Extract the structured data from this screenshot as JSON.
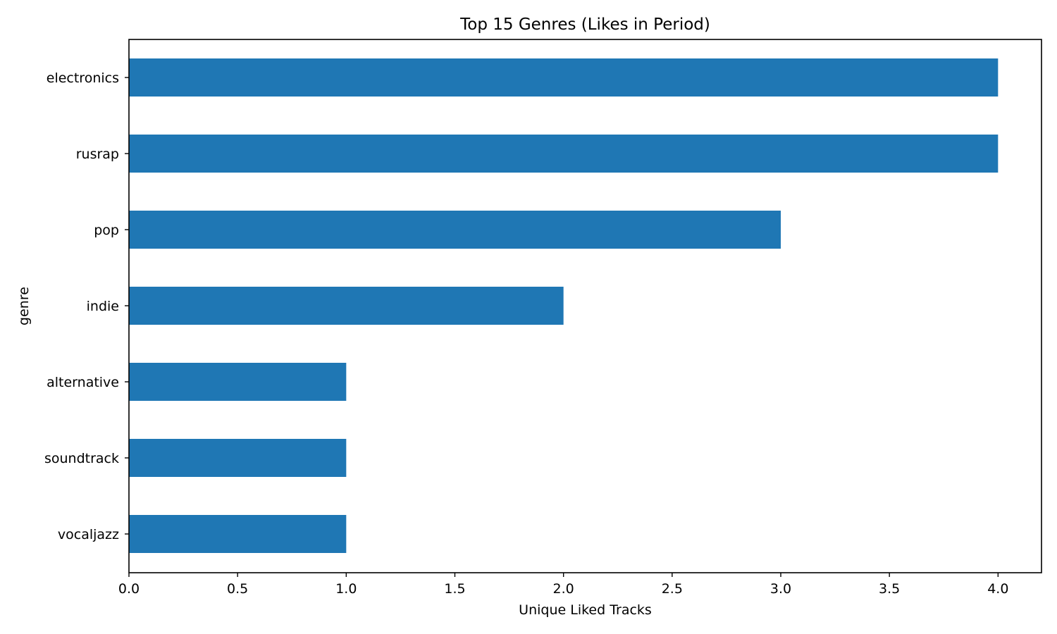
{
  "chart_data": {
    "type": "bar",
    "orientation": "horizontal",
    "title": "Top 15 Genres (Likes in Period)",
    "xlabel": "Unique Liked Tracks",
    "ylabel": "genre",
    "categories": [
      "electronics",
      "rusrap",
      "pop",
      "indie",
      "alternative",
      "soundtrack",
      "vocaljazz"
    ],
    "values": [
      4,
      4,
      3,
      2,
      1,
      1,
      1
    ],
    "xlim": [
      0,
      4.2
    ],
    "xticks": [
      0.0,
      0.5,
      1.0,
      1.5,
      2.0,
      2.5,
      3.0,
      3.5,
      4.0
    ],
    "xtick_labels": [
      "0.0",
      "0.5",
      "1.0",
      "1.5",
      "2.0",
      "2.5",
      "3.0",
      "3.5",
      "4.0"
    ],
    "bar_color": "#1f77b4",
    "grid": false,
    "legend": "none"
  }
}
